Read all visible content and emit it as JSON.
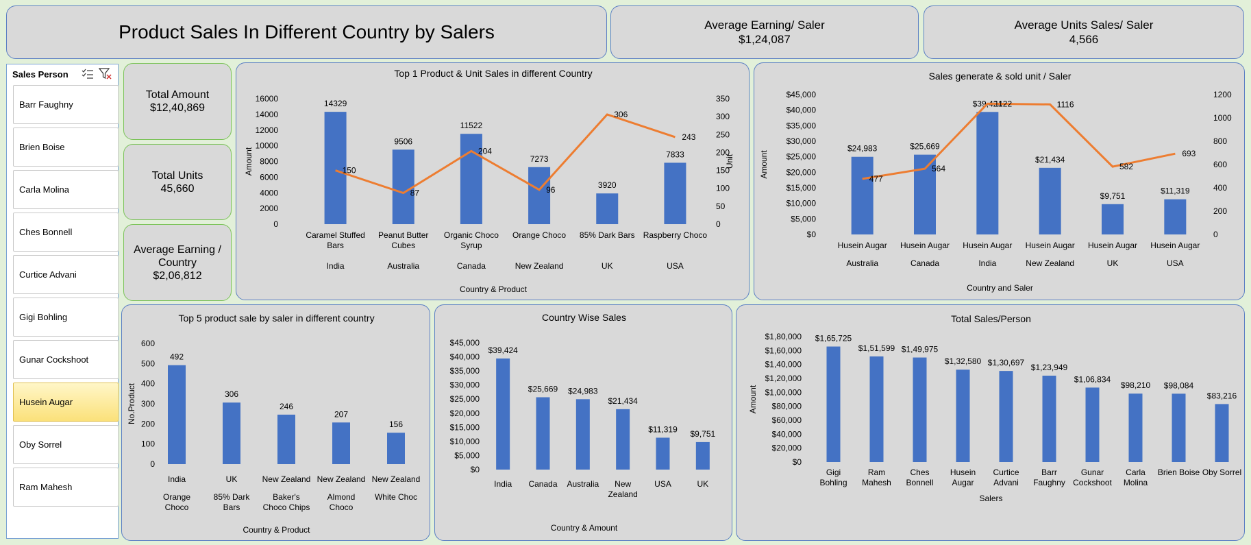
{
  "header": {
    "title": "Product Sales In Different Country by Salers",
    "avg_earning_label": "Average Earning/ Saler",
    "avg_earning_value": "$1,24,087",
    "avg_units_label": "Average Units Sales/ Saler",
    "avg_units_value": "4,566"
  },
  "kpis": {
    "total_amount_label": "Total Amount",
    "total_amount_value": "$12,40,869",
    "total_units_label": "Total Units",
    "total_units_value": "45,660",
    "avg_country_label": "Average Earning / Country",
    "avg_country_value": "$2,06,812"
  },
  "slicer": {
    "title": "Sales Person",
    "items": [
      {
        "label": "Barr Faughny",
        "selected": false
      },
      {
        "label": "Brien Boise",
        "selected": false
      },
      {
        "label": "Carla Molina",
        "selected": false
      },
      {
        "label": "Ches Bonnell",
        "selected": false
      },
      {
        "label": "Curtice Advani",
        "selected": false
      },
      {
        "label": "Gigi Bohling",
        "selected": false
      },
      {
        "label": "Gunar Cockshoot",
        "selected": false
      },
      {
        "label": "Husein Augar",
        "selected": true
      },
      {
        "label": "Oby Sorrel",
        "selected": false
      },
      {
        "label": "Ram Mahesh",
        "selected": false
      }
    ]
  },
  "colors": {
    "bar": "#4472c4",
    "line": "#ed7d31",
    "panel": "#d9d9d9",
    "accent_border": "#5b7fc4",
    "kpi_border": "#7cc35a"
  },
  "chart_data": [
    {
      "id": "top1",
      "type": "bar",
      "title": "Top 1 Product & Unit Sales in different Country",
      "xlabel": "Country & Product",
      "ylabel": "Amount",
      "y2label": "Unit",
      "ylim": [
        0,
        16000
      ],
      "y2lim": [
        0,
        350
      ],
      "yticks": [
        "0",
        "2000",
        "4000",
        "6000",
        "8000",
        "10000",
        "12000",
        "14000",
        "16000"
      ],
      "y2ticks": [
        "0",
        "50",
        "100",
        "150",
        "200",
        "250",
        "300",
        "350"
      ],
      "categories": [
        {
          "country": "India",
          "product": [
            "Caramel Stuffed",
            "Bars"
          ]
        },
        {
          "country": "Australia",
          "product": [
            "Peanut Butter",
            "Cubes"
          ]
        },
        {
          "country": "Canada",
          "product": [
            "Organic Choco",
            "Syrup"
          ]
        },
        {
          "country": "New Zealand",
          "product": [
            "Orange Choco"
          ]
        },
        {
          "country": "UK",
          "product": [
            "85% Dark Bars"
          ]
        },
        {
          "country": "USA",
          "product": [
            "Raspberry Choco"
          ]
        }
      ],
      "values": [
        14329,
        9506,
        11522,
        7273,
        3920,
        7833
      ],
      "value_labels": [
        "14329",
        "9506",
        "11522",
        "7273",
        "3920",
        "7833"
      ],
      "line_values": [
        150,
        87,
        204,
        96,
        306,
        243
      ],
      "line_labels": [
        "150",
        "87",
        "204",
        "96",
        "306",
        "243"
      ]
    },
    {
      "id": "saler",
      "type": "bar",
      "title": "Sales generate & sold unit / Saler",
      "xlabel": "Country and Saler",
      "ylabel": "Amount",
      "ylim": [
        0,
        45000
      ],
      "y2lim": [
        0,
        1200
      ],
      "yticks": [
        "$0",
        "$5,000",
        "$10,000",
        "$15,000",
        "$20,000",
        "$25,000",
        "$30,000",
        "$35,000",
        "$40,000",
        "$45,000"
      ],
      "y2ticks": [
        "0",
        "200",
        "400",
        "600",
        "800",
        "1000",
        "1200"
      ],
      "categories": [
        {
          "country": "Australia",
          "product": [
            "Husein Augar"
          ]
        },
        {
          "country": "Canada",
          "product": [
            "Husein Augar"
          ]
        },
        {
          "country": "India",
          "product": [
            "Husein Augar"
          ]
        },
        {
          "country": "New Zealand",
          "product": [
            "Husein Augar"
          ]
        },
        {
          "country": "UK",
          "product": [
            "Husein Augar"
          ]
        },
        {
          "country": "USA",
          "product": [
            "Husein Augar"
          ]
        }
      ],
      "values": [
        24983,
        25669,
        39424,
        21434,
        9751,
        11319
      ],
      "value_labels": [
        "$24,983",
        "$25,669",
        "$39,424",
        "$21,434",
        "$9,751",
        "$11,319"
      ],
      "line_values": [
        477,
        564,
        1122,
        1116,
        582,
        693
      ],
      "line_labels": [
        "477",
        "564",
        "1122",
        "1116",
        "582",
        "693"
      ]
    },
    {
      "id": "top5",
      "type": "bar",
      "title": "Top 5 product sale by saler in different country",
      "xlabel": "Country & Product",
      "ylabel": "No.Product",
      "ylim": [
        0,
        600
      ],
      "yticks": [
        "0",
        "100",
        "200",
        "300",
        "400",
        "500",
        "600"
      ],
      "categories": [
        {
          "country": "India",
          "product": [
            "Orange",
            "Choco"
          ]
        },
        {
          "country": "UK",
          "product": [
            "85% Dark",
            "Bars"
          ]
        },
        {
          "country": "New Zealand",
          "product": [
            "Baker's",
            "Choco Chips"
          ]
        },
        {
          "country": "New Zealand",
          "product": [
            "Almond",
            "Choco"
          ]
        },
        {
          "country": "New Zealand",
          "product": [
            "White Choc"
          ]
        }
      ],
      "values": [
        492,
        306,
        246,
        207,
        156
      ],
      "value_labels": [
        "492",
        "306",
        "246",
        "207",
        "156"
      ]
    },
    {
      "id": "country",
      "type": "bar",
      "title": "Country Wise Sales",
      "xlabel": "Country & Amount",
      "ylabel": "",
      "ylim": [
        0,
        45000
      ],
      "yticks": [
        "$0",
        "$5,000",
        "$10,000",
        "$15,000",
        "$20,000",
        "$25,000",
        "$30,000",
        "$35,000",
        "$40,000",
        "$45,000"
      ],
      "categories": [
        {
          "country": "",
          "product": [
            "India"
          ]
        },
        {
          "country": "",
          "product": [
            "Canada"
          ]
        },
        {
          "country": "",
          "product": [
            "Australia"
          ]
        },
        {
          "country": "",
          "product": [
            "New",
            "Zealand"
          ]
        },
        {
          "country": "",
          "product": [
            "USA"
          ]
        },
        {
          "country": "",
          "product": [
            "UK"
          ]
        }
      ],
      "values": [
        39424,
        25669,
        24983,
        21434,
        11319,
        9751
      ],
      "value_labels": [
        "$39,424",
        "$25,669",
        "$24,983",
        "$21,434",
        "$11,319",
        "$9,751"
      ]
    },
    {
      "id": "person",
      "type": "bar",
      "title": "Total Sales/Person",
      "xlabel": "Salers",
      "ylabel": "Amount",
      "ylim": [
        0,
        180000
      ],
      "yticks": [
        "$0",
        "$20,000",
        "$40,000",
        "$60,000",
        "$80,000",
        "$1,00,000",
        "$1,20,000",
        "$1,40,000",
        "$1,60,000",
        "$1,80,000"
      ],
      "categories": [
        {
          "country": "",
          "product": [
            "Gigi",
            "Bohling"
          ]
        },
        {
          "country": "",
          "product": [
            "Ram",
            "Mahesh"
          ]
        },
        {
          "country": "",
          "product": [
            "Ches",
            "Bonnell"
          ]
        },
        {
          "country": "",
          "product": [
            "Husein",
            "Augar"
          ]
        },
        {
          "country": "",
          "product": [
            "Curtice",
            "Advani"
          ]
        },
        {
          "country": "",
          "product": [
            "Barr",
            "Faughny"
          ]
        },
        {
          "country": "",
          "product": [
            "Gunar",
            "Cockshoot"
          ]
        },
        {
          "country": "",
          "product": [
            "Carla",
            "Molina"
          ]
        },
        {
          "country": "",
          "product": [
            "Brien Boise"
          ]
        },
        {
          "country": "",
          "product": [
            "Oby Sorrel"
          ]
        }
      ],
      "values": [
        165725,
        151599,
        149975,
        132580,
        130697,
        123949,
        106834,
        98210,
        98084,
        83216
      ],
      "value_labels": [
        "$1,65,725",
        "$1,51,599",
        "$1,49,975",
        "$1,32,580",
        "$1,30,697",
        "$1,23,949",
        "$1,06,834",
        "$98,210",
        "$98,084",
        "$83,216"
      ]
    }
  ]
}
